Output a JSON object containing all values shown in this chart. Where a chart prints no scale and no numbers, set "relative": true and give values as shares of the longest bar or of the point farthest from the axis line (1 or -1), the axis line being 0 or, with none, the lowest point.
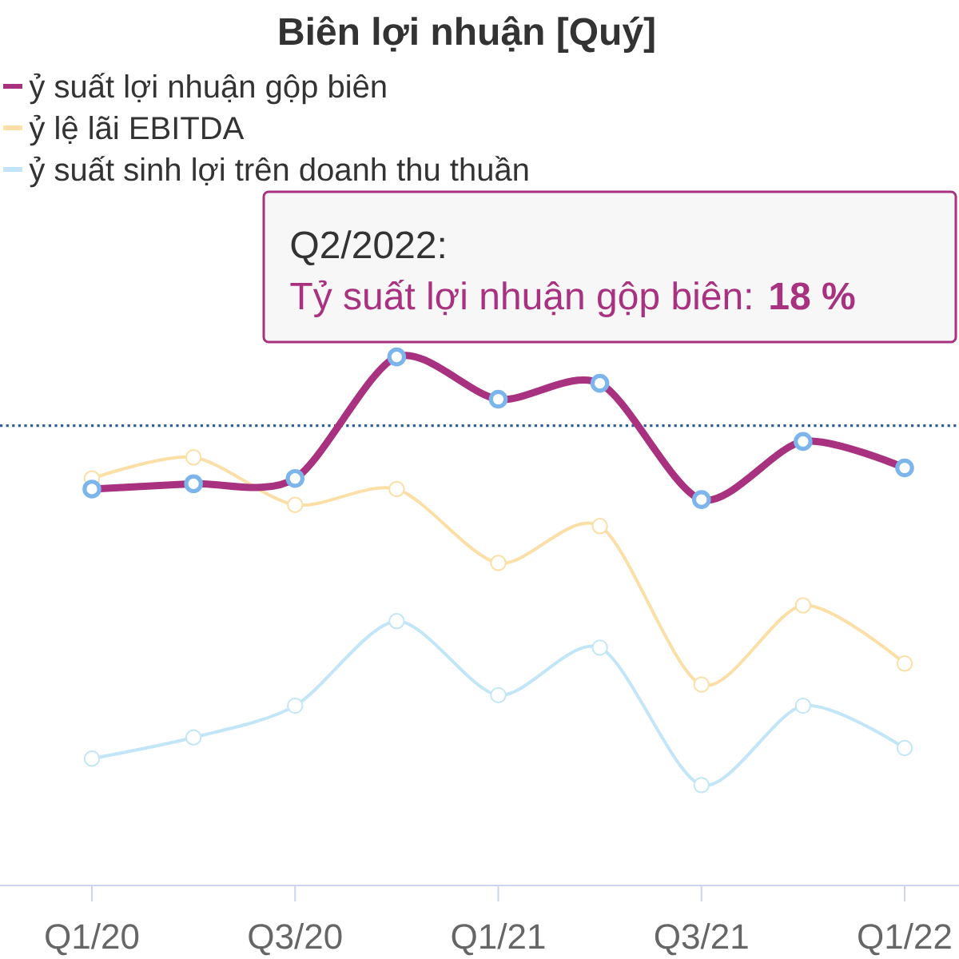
{
  "chart_data": {
    "type": "line",
    "title": "Biên lợi nhuận [Quý]",
    "categories": [
      "Q1/20",
      null,
      "Q3/20",
      null,
      "Q1/21",
      null,
      "Q3/21",
      null,
      "Q1/22"
    ],
    "relative": true,
    "series": [
      {
        "name": "ỷ suất lợi nhuận gộp biên",
        "color": "#a8327f",
        "values": [
          0.75,
          0.76,
          0.77,
          1,
          0.92,
          0.95,
          0.73,
          0.84,
          0.79
        ]
      },
      {
        "name": "ỷ lệ lãi EBITDA",
        "color": "#fbdfa6",
        "values": [
          0.77,
          0.81,
          0.72,
          0.75,
          0.61,
          0.68,
          0.38,
          0.53,
          0.42
        ]
      },
      {
        "name": "ỷ suất sinh lợi trên doanh thu thuần",
        "color": "#c2e6f7",
        "values": [
          0.24,
          0.28,
          0.34,
          0.5,
          0.36,
          0.45,
          0.19,
          0.34,
          0.26
        ]
      }
    ],
    "marker": "circle",
    "legend": "top left",
    "ref_lines": [
      {
        "axis": "y",
        "value": 0.87,
        "color": "#2f5f96",
        "line_style": "dotted"
      }
    ],
    "annotations": [
      "Q2/2022:",
      "Tỷ suất lợi nhuận gộp biên: **18 %**"
    ]
  }
}
